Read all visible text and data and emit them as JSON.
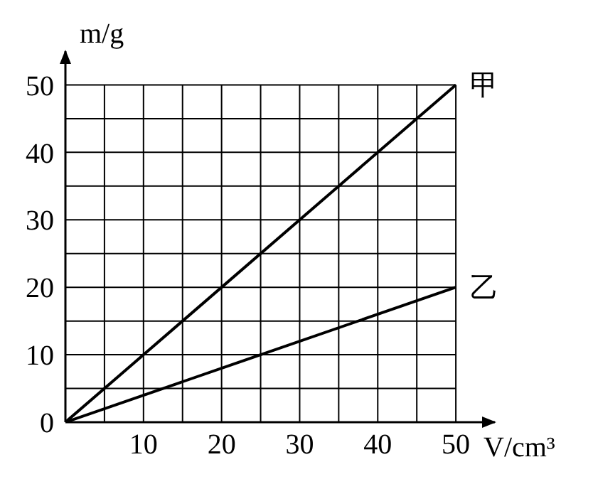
{
  "chart_data": {
    "type": "line",
    "xlabel": "V/cm³",
    "ylabel": "m/g",
    "x": [
      0,
      50
    ],
    "series": [
      {
        "name": "甲",
        "color": "#000000",
        "values": [
          0,
          50
        ]
      },
      {
        "name": "乙",
        "color": "#000000",
        "values": [
          0,
          20
        ]
      }
    ],
    "xlim": [
      0,
      55
    ],
    "ylim": [
      0,
      55
    ],
    "xticks": [
      {
        "value": 0,
        "label": null
      },
      {
        "value": 5,
        "label": null
      },
      10,
      {
        "value": 15,
        "label": null
      },
      20,
      {
        "value": 25,
        "label": null
      },
      30,
      {
        "value": 35,
        "label": null
      },
      40,
      {
        "value": 45,
        "label": null
      },
      50
    ],
    "yticks": [
      0,
      {
        "value": 5,
        "label": null
      },
      10,
      {
        "value": 15,
        "label": null
      },
      20,
      {
        "value": 25,
        "label": null
      },
      30,
      {
        "value": 35,
        "label": null
      },
      40,
      {
        "value": 45,
        "label": null
      },
      50
    ],
    "grid": true,
    "legend": false,
    "marker": "none",
    "line_style": "solid"
  }
}
